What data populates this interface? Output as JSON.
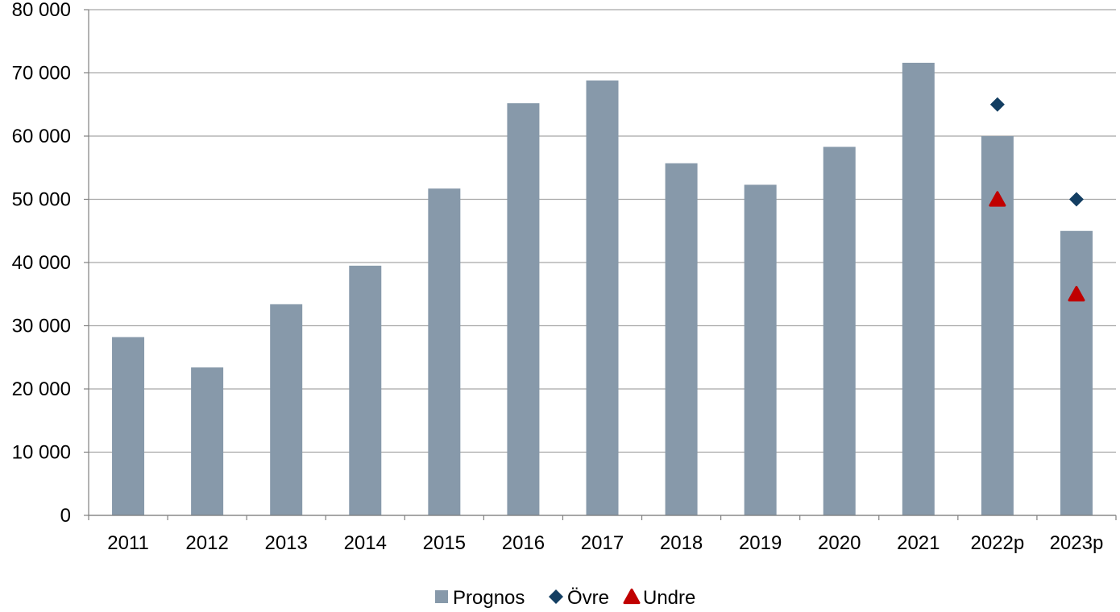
{
  "chart_data": {
    "type": "bar",
    "categories": [
      "2011",
      "2012",
      "2013",
      "2014",
      "2015",
      "2016",
      "2017",
      "2018",
      "2019",
      "2020",
      "2021",
      "2022p",
      "2023p"
    ],
    "series": [
      {
        "name": "Prognos",
        "kind": "bar",
        "color": "#8799aa",
        "values": [
          28200,
          23400,
          33400,
          39500,
          51700,
          65200,
          68800,
          55700,
          52300,
          58300,
          71600,
          60000,
          45000
        ]
      },
      {
        "name": "Övre",
        "kind": "marker",
        "marker": "diamond",
        "color": "#133e62",
        "values": [
          null,
          null,
          null,
          null,
          null,
          null,
          null,
          null,
          null,
          null,
          null,
          65000,
          50000
        ]
      },
      {
        "name": "Undre",
        "kind": "marker",
        "marker": "triangle",
        "color": "#c00000",
        "values": [
          null,
          null,
          null,
          null,
          null,
          null,
          null,
          null,
          null,
          null,
          null,
          50000,
          35000
        ]
      }
    ],
    "ylim": [
      0,
      80000
    ],
    "yticks": [
      0,
      10000,
      20000,
      30000,
      40000,
      50000,
      60000,
      70000,
      80000
    ],
    "ytick_labels": [
      "0",
      "10 000",
      "20 000",
      "30 000",
      "40 000",
      "50 000",
      "60 000",
      "70 000",
      "80 000"
    ],
    "grid": true,
    "legend_position": "bottom-center",
    "title": "",
    "xlabel": "",
    "ylabel": ""
  }
}
